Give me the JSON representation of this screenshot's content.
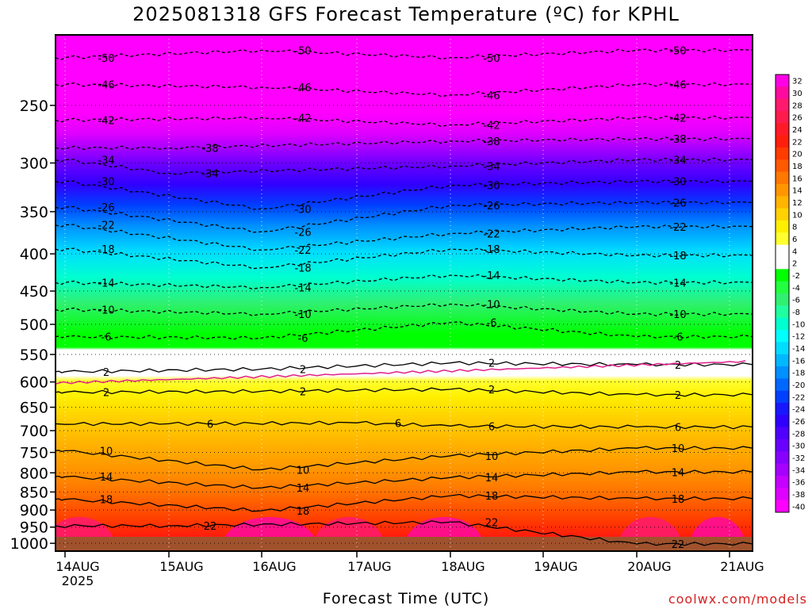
{
  "title": "2025081318 GFS Forecast Temperature (ºC) for KPHL",
  "xlabel": "Forecast Time (UTC)",
  "credit": "coolwx.com/models",
  "chart_data": {
    "type": "heatmap",
    "title": "2025081318 GFS Forecast Temperature (ºC) for KPHL",
    "xlabel": "Forecast Time (UTC)",
    "ylabel": "",
    "x_ticks": [
      "14AUG",
      "15AUG",
      "16AUG",
      "17AUG",
      "18AUG",
      "19AUG",
      "20AUG",
      "21AUG"
    ],
    "x_tick_sublabel": "2025",
    "y_ticks": [
      250,
      300,
      350,
      400,
      450,
      500,
      550,
      600,
      650,
      700,
      750,
      800,
      850,
      900,
      950,
      1000
    ],
    "ylim": [
      200,
      1025
    ],
    "grid": true,
    "colorbar": {
      "placement": "right",
      "boundaries": [
        32,
        30,
        28,
        26,
        24,
        22,
        20,
        18,
        16,
        14,
        12,
        10,
        8,
        6,
        4,
        2,
        -2,
        -4,
        -6,
        -8,
        -10,
        -12,
        -14,
        -16,
        -18,
        -20,
        -22,
        -24,
        -26,
        -28,
        -30,
        -32,
        -34,
        -36,
        -38,
        -40
      ],
      "colors": [
        "#ff00e6",
        "#ff0aa0",
        "#ff1a6e",
        "#ff1b4c",
        "#ff1a28",
        "#ff1e0c",
        "#ff3c00",
        "#ff5a00",
        "#ff7800",
        "#ff9600",
        "#ffb400",
        "#ffd200",
        "#fff000",
        "#ffff30",
        "#ffffff",
        "#ffffff",
        "#00ff00",
        "#22ff40",
        "#30f070",
        "#20ffa0",
        "#00ffd0",
        "#00ffff",
        "#00ddff",
        "#00b8ff",
        "#0090ff",
        "#0068ff",
        "#0040ff",
        "#1818ff",
        "#3000ff",
        "#5000ff",
        "#6a00ff",
        "#8800ff",
        "#a600ff",
        "#c600ff",
        "#e000ff",
        "#ff00ff"
      ]
    },
    "contour_labels": [
      {
        "value": "-50",
        "time": "14AUG",
        "level": 215
      },
      {
        "value": "-50",
        "time": "16AUG",
        "level": 210
      },
      {
        "value": "-50",
        "time": "18AUG",
        "level": 215
      },
      {
        "value": "-50",
        "time": "20AUG",
        "level": 210
      },
      {
        "value": "-46",
        "time": "14AUG",
        "level": 234
      },
      {
        "value": "-46",
        "time": "16AUG",
        "level": 236
      },
      {
        "value": "-46",
        "time": "18AUG",
        "level": 242
      },
      {
        "value": "-46",
        "time": "20AUG",
        "level": 234
      },
      {
        "value": "-42",
        "time": "14AUG",
        "level": 262
      },
      {
        "value": "-42",
        "time": "16AUG",
        "level": 260
      },
      {
        "value": "-42",
        "time": "18AUG",
        "level": 266
      },
      {
        "value": "-42",
        "time": "20AUG",
        "level": 260
      },
      {
        "value": "-38",
        "time": "15AUG",
        "level": 286
      },
      {
        "value": "-38",
        "time": "18AUG",
        "level": 280
      },
      {
        "value": "-38",
        "time": "20AUG",
        "level": 278
      },
      {
        "value": "-34",
        "time": "14AUG",
        "level": 297
      },
      {
        "value": "-34",
        "time": "15AUG",
        "level": 310
      },
      {
        "value": "-34",
        "time": "18AUG",
        "level": 303
      },
      {
        "value": "-34",
        "time": "20AUG",
        "level": 297
      },
      {
        "value": "-30",
        "time": "14AUG",
        "level": 318
      },
      {
        "value": "-30",
        "time": "16AUG",
        "level": 347
      },
      {
        "value": "-30",
        "time": "18AUG",
        "level": 322
      },
      {
        "value": "-30",
        "time": "20AUG",
        "level": 318
      },
      {
        "value": "-26",
        "time": "14AUG",
        "level": 345
      },
      {
        "value": "-26",
        "time": "16AUG",
        "level": 373
      },
      {
        "value": "-26",
        "time": "18AUG",
        "level": 343
      },
      {
        "value": "-26",
        "time": "20AUG",
        "level": 340
      },
      {
        "value": "-22",
        "time": "14AUG",
        "level": 365
      },
      {
        "value": "-22",
        "time": "16AUG",
        "level": 395
      },
      {
        "value": "-22",
        "time": "18AUG",
        "level": 375
      },
      {
        "value": "-22",
        "time": "20AUG",
        "level": 367
      },
      {
        "value": "-18",
        "time": "14AUG",
        "level": 394
      },
      {
        "value": "-18",
        "time": "16AUG",
        "level": 418
      },
      {
        "value": "-18",
        "time": "18AUG",
        "level": 394
      },
      {
        "value": "-18",
        "time": "20AUG",
        "level": 402
      },
      {
        "value": "-14",
        "time": "14AUG",
        "level": 438
      },
      {
        "value": "-14",
        "time": "16AUG",
        "level": 445
      },
      {
        "value": "-14",
        "time": "18AUG",
        "level": 428
      },
      {
        "value": "-14",
        "time": "20AUG",
        "level": 438
      },
      {
        "value": "-10",
        "time": "14AUG",
        "level": 477
      },
      {
        "value": "-10",
        "time": "16AUG",
        "level": 484
      },
      {
        "value": "-10",
        "time": "18AUG",
        "level": 469
      },
      {
        "value": "-10",
        "time": "20AUG",
        "level": 484
      },
      {
        "value": "-6",
        "time": "14AUG",
        "level": 520
      },
      {
        "value": "-6",
        "time": "16AUG",
        "level": 522
      },
      {
        "value": "-6",
        "time": "18AUG",
        "level": 497
      },
      {
        "value": "-6",
        "time": "20AUG",
        "level": 520
      },
      {
        "value": "2",
        "time": "14AUG",
        "level": 581
      },
      {
        "value": "2",
        "time": "16AUG",
        "level": 576
      },
      {
        "value": "2",
        "time": "18AUG",
        "level": 565
      },
      {
        "value": "2",
        "time": "20AUG",
        "level": 568
      },
      {
        "value": "2",
        "time": "14AUG",
        "level": 620
      },
      {
        "value": "2",
        "time": "16AUG",
        "level": 618
      },
      {
        "value": "2",
        "time": "18AUG",
        "level": 614
      },
      {
        "value": "2",
        "time": "20AUG",
        "level": 625
      },
      {
        "value": "6",
        "time": "15AUG",
        "level": 685
      },
      {
        "value": "6",
        "time": "17AUG",
        "level": 683
      },
      {
        "value": "6",
        "time": "18AUG",
        "level": 690
      },
      {
        "value": "6",
        "time": "20AUG",
        "level": 692
      },
      {
        "value": "10",
        "time": "14AUG",
        "level": 746
      },
      {
        "value": "10",
        "time": "16AUG",
        "level": 792
      },
      {
        "value": "10",
        "time": "18AUG",
        "level": 758
      },
      {
        "value": "10",
        "time": "20AUG",
        "level": 740
      },
      {
        "value": "14",
        "time": "14AUG",
        "level": 810
      },
      {
        "value": "14",
        "time": "16AUG",
        "level": 839
      },
      {
        "value": "14",
        "time": "18AUG",
        "level": 812
      },
      {
        "value": "14",
        "time": "20AUG",
        "level": 798
      },
      {
        "value": "18",
        "time": "14AUG",
        "level": 870
      },
      {
        "value": "18",
        "time": "16AUG",
        "level": 902
      },
      {
        "value": "18",
        "time": "18AUG",
        "level": 860
      },
      {
        "value": "18",
        "time": "20AUG",
        "level": 868
      },
      {
        "value": "22",
        "time": "15AUG",
        "level": 946
      },
      {
        "value": "22",
        "time": "18AUG",
        "level": 935
      },
      {
        "value": "22",
        "time": "20AUG",
        "level": 1002
      }
    ]
  }
}
